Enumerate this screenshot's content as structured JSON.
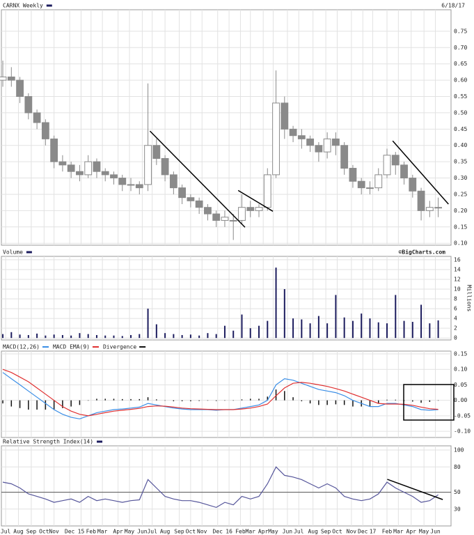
{
  "chart_data": [
    {
      "type": "candlestick",
      "title": "CARNX Weekly",
      "date": "6/18/17",
      "color": "#8a8a8a",
      "grid": true,
      "x": [
        0,
        3,
        6,
        9,
        12,
        15,
        18,
        21,
        24,
        27,
        30,
        33,
        36,
        39,
        42,
        45,
        48,
        51,
        54,
        57,
        60,
        63,
        66,
        69,
        72,
        75,
        78,
        81,
        84,
        87,
        90,
        93,
        96,
        99,
        102,
        105,
        108,
        111,
        114,
        117,
        120,
        123,
        126,
        129,
        132,
        135,
        138,
        141,
        144,
        147,
        150,
        153
      ],
      "open": [
        0.6,
        0.61,
        0.6,
        0.55,
        0.5,
        0.47,
        0.42,
        0.35,
        0.34,
        0.32,
        0.31,
        0.35,
        0.32,
        0.31,
        0.3,
        0.28,
        0.28,
        0.28,
        0.4,
        0.36,
        0.31,
        0.27,
        0.24,
        0.23,
        0.21,
        0.19,
        0.17,
        0.17,
        0.17,
        0.21,
        0.2,
        0.21,
        0.31,
        0.53,
        0.45,
        0.43,
        0.42,
        0.4,
        0.38,
        0.42,
        0.4,
        0.33,
        0.29,
        0.27,
        0.27,
        0.31,
        0.37,
        0.34,
        0.3,
        0.26,
        0.2,
        0.21
      ],
      "high": [
        0.66,
        0.64,
        0.61,
        0.56,
        0.51,
        0.48,
        0.43,
        0.37,
        0.35,
        0.34,
        0.37,
        0.36,
        0.33,
        0.32,
        0.31,
        0.3,
        0.29,
        0.59,
        0.42,
        0.37,
        0.32,
        0.28,
        0.25,
        0.24,
        0.22,
        0.2,
        0.2,
        0.19,
        0.25,
        0.23,
        0.22,
        0.33,
        0.63,
        0.55,
        0.46,
        0.45,
        0.43,
        0.41,
        0.44,
        0.44,
        0.41,
        0.34,
        0.3,
        0.29,
        0.33,
        0.39,
        0.38,
        0.35,
        0.31,
        0.27,
        0.23,
        0.24
      ],
      "low": [
        0.58,
        0.58,
        0.53,
        0.48,
        0.45,
        0.4,
        0.33,
        0.32,
        0.3,
        0.29,
        0.3,
        0.3,
        0.29,
        0.28,
        0.26,
        0.26,
        0.25,
        0.26,
        0.34,
        0.29,
        0.25,
        0.22,
        0.21,
        0.19,
        0.17,
        0.15,
        0.15,
        0.11,
        0.16,
        0.18,
        0.18,
        0.2,
        0.3,
        0.42,
        0.41,
        0.39,
        0.38,
        0.35,
        0.36,
        0.37,
        0.31,
        0.27,
        0.25,
        0.25,
        0.26,
        0.3,
        0.31,
        0.28,
        0.24,
        0.17,
        0.18,
        0.18
      ],
      "close": [
        0.61,
        0.6,
        0.55,
        0.5,
        0.47,
        0.42,
        0.35,
        0.34,
        0.32,
        0.31,
        0.35,
        0.32,
        0.31,
        0.3,
        0.28,
        0.28,
        0.27,
        0.4,
        0.36,
        0.31,
        0.27,
        0.24,
        0.23,
        0.21,
        0.19,
        0.17,
        0.18,
        0.17,
        0.21,
        0.2,
        0.21,
        0.31,
        0.53,
        0.45,
        0.43,
        0.42,
        0.4,
        0.38,
        0.42,
        0.4,
        0.33,
        0.29,
        0.27,
        0.27,
        0.31,
        0.37,
        0.34,
        0.3,
        0.26,
        0.2,
        0.21,
        0.21
      ],
      "ylim": [
        0.094,
        0.816
      ],
      "yticks": [
        {
          "value": 0.1,
          "label": "0.10"
        },
        0.15,
        {
          "value": 0.2,
          "label": "0.20"
        },
        0.25,
        {
          "value": 0.3,
          "label": "0.30"
        },
        0.35,
        {
          "value": 0.4,
          "label": "0.40"
        },
        0.45,
        {
          "value": 0.5,
          "label": "0.50"
        },
        0.55,
        {
          "value": 0.6,
          "label": "0.60"
        },
        0.65,
        {
          "value": 0.7,
          "label": "0.70"
        },
        0.75
      ],
      "trendlines": [
        {
          "x": [
            51.7,
            85.1
          ],
          "y": [
            0.444,
            0.149
          ]
        },
        {
          "x": [
            82.7,
            94.9
          ],
          "y": [
            0.262,
            0.198
          ]
        },
        {
          "x": [
            137,
            156.6
          ],
          "y": [
            0.414,
            0.22
          ]
        }
      ]
    },
    {
      "type": "bar",
      "title": "Volume",
      "source": "©BigCharts.com",
      "unit_label": "Millions",
      "color": "#1c1c5e",
      "grid": true,
      "x": [
        0,
        3,
        6,
        9,
        12,
        15,
        18,
        21,
        24,
        27,
        30,
        33,
        36,
        39,
        42,
        45,
        48,
        51,
        54,
        57,
        60,
        63,
        66,
        69,
        72,
        75,
        78,
        81,
        84,
        87,
        90,
        93,
        96,
        99,
        102,
        105,
        108,
        111,
        114,
        117,
        120,
        123,
        126,
        129,
        132,
        135,
        138,
        141,
        144,
        147,
        150,
        153
      ],
      "values": [
        0.8,
        1.2,
        0.7,
        0.6,
        0.9,
        0.5,
        0.7,
        0.6,
        0.5,
        1.0,
        0.8,
        0.6,
        0.5,
        0.5,
        0.4,
        0.6,
        0.8,
        6.0,
        2.8,
        1.0,
        0.8,
        0.6,
        0.7,
        0.5,
        1.0,
        0.8,
        2.5,
        1.5,
        4.8,
        2.0,
        2.5,
        3.5,
        14.4,
        10.0,
        4.0,
        3.8,
        3.0,
        4.5,
        3.0,
        8.8,
        4.2,
        3.5,
        5.0,
        4.0,
        3.2,
        3.0,
        8.8,
        3.5,
        3.3,
        6.8,
        3.0,
        3.6
      ],
      "ylim": [
        -0.4,
        16.7
      ],
      "yticks": [
        0,
        2,
        4,
        6,
        8,
        10,
        12,
        14,
        16
      ]
    },
    {
      "type": "line",
      "grid": true,
      "x": [
        0,
        3,
        6,
        9,
        12,
        15,
        18,
        21,
        24,
        27,
        30,
        33,
        36,
        39,
        42,
        45,
        48,
        51,
        54,
        57,
        60,
        63,
        66,
        69,
        72,
        75,
        78,
        81,
        84,
        87,
        90,
        93,
        96,
        99,
        102,
        105,
        108,
        111,
        114,
        117,
        120,
        123,
        126,
        129,
        132,
        135,
        138,
        141,
        144,
        147,
        150,
        153
      ],
      "series": [
        {
          "name": "MACD(12,26)",
          "color": "#3a8ee6",
          "kind": "line",
          "values": [
            0.09,
            0.07,
            0.05,
            0.03,
            0.01,
            -0.01,
            -0.03,
            -0.045,
            -0.055,
            -0.06,
            -0.05,
            -0.04,
            -0.035,
            -0.03,
            -0.028,
            -0.025,
            -0.022,
            -0.01,
            -0.015,
            -0.02,
            -0.025,
            -0.028,
            -0.03,
            -0.03,
            -0.03,
            -0.032,
            -0.03,
            -0.03,
            -0.025,
            -0.02,
            -0.015,
            0.0,
            0.05,
            0.07,
            0.065,
            0.055,
            0.045,
            0.035,
            0.03,
            0.025,
            0.015,
            0.0,
            -0.01,
            -0.02,
            -0.02,
            -0.01,
            -0.01,
            -0.015,
            -0.02,
            -0.03,
            -0.032,
            -0.03
          ]
        },
        {
          "name": "MACD EMA(9)",
          "color": "#e03030",
          "kind": "line",
          "values": [
            0.1,
            0.09,
            0.075,
            0.06,
            0.04,
            0.02,
            0.0,
            -0.02,
            -0.035,
            -0.045,
            -0.05,
            -0.045,
            -0.04,
            -0.035,
            -0.032,
            -0.029,
            -0.026,
            -0.02,
            -0.018,
            -0.019,
            -0.022,
            -0.025,
            -0.027,
            -0.028,
            -0.029,
            -0.03,
            -0.03,
            -0.03,
            -0.028,
            -0.025,
            -0.02,
            -0.012,
            0.015,
            0.04,
            0.055,
            0.058,
            0.055,
            0.05,
            0.045,
            0.038,
            0.03,
            0.02,
            0.01,
            0.0,
            -0.01,
            -0.012,
            -0.012,
            -0.013,
            -0.016,
            -0.022,
            -0.027,
            -0.029
          ]
        },
        {
          "name": "Divergence",
          "color": "#111111",
          "kind": "bar",
          "values": [
            -0.01,
            -0.02,
            -0.025,
            -0.03,
            -0.03,
            -0.03,
            -0.03,
            -0.025,
            -0.02,
            -0.015,
            0.0,
            0.005,
            0.005,
            0.005,
            0.004,
            0.004,
            0.004,
            0.01,
            0.003,
            -0.001,
            -0.003,
            -0.003,
            -0.003,
            -0.002,
            -0.001,
            -0.002,
            0.0,
            0.0,
            0.003,
            0.005,
            0.005,
            0.012,
            0.035,
            0.03,
            0.01,
            -0.003,
            -0.01,
            -0.015,
            -0.015,
            -0.013,
            -0.015,
            -0.02,
            -0.02,
            -0.02,
            -0.01,
            0.002,
            0.002,
            -0.002,
            -0.004,
            -0.008,
            -0.005,
            -0.001
          ]
        }
      ],
      "ylim": [
        -0.12,
        0.159
      ],
      "yticks": [
        {
          "value": -0.1,
          "label": "-0.10"
        },
        -0.05,
        {
          "value": 0.0,
          "label": "0.00"
        },
        0.05,
        {
          "value": 0.1,
          "label": "0.10"
        },
        0.15
      ]
    },
    {
      "type": "line",
      "title": "Relative Strength Index(14)",
      "color": "#55559a",
      "grid": true,
      "x": [
        0,
        3,
        6,
        9,
        12,
        15,
        18,
        21,
        24,
        27,
        30,
        33,
        36,
        39,
        42,
        45,
        48,
        51,
        54,
        57,
        60,
        63,
        66,
        69,
        72,
        75,
        78,
        81,
        84,
        87,
        90,
        93,
        96,
        99,
        102,
        105,
        108,
        111,
        114,
        117,
        120,
        123,
        126,
        129,
        132,
        135,
        138,
        141,
        144,
        147,
        150,
        153
      ],
      "values": [
        62,
        60,
        55,
        48,
        45,
        42,
        38,
        40,
        42,
        38,
        45,
        40,
        42,
        40,
        38,
        40,
        41,
        65,
        55,
        45,
        42,
        40,
        40,
        38,
        35,
        32,
        38,
        35,
        45,
        42,
        45,
        60,
        80,
        70,
        68,
        65,
        60,
        55,
        60,
        55,
        45,
        42,
        40,
        42,
        48,
        62,
        55,
        50,
        45,
        38,
        40,
        47
      ],
      "ylim": [
        10,
        105
      ],
      "yticks": [
        30,
        50,
        80,
        100
      ],
      "reference_line": 50,
      "trendlines": [
        {
          "x": [
            135.1,
            154.6
          ],
          "y": [
            65.3,
            41.3
          ]
        }
      ],
      "xlim": [
        -0.5,
        157.5
      ],
      "xticks": [
        {
          "value": 1,
          "label": "Jul"
        },
        {
          "value": 5.5,
          "label": "Aug"
        },
        {
          "value": 10,
          "label": "Sep"
        },
        {
          "value": 14.5,
          "label": "Oct"
        },
        {
          "value": 18,
          "label": "Nov"
        },
        {
          "value": 23.5,
          "label": "Dec"
        },
        {
          "value": 27.5,
          "label": "15"
        },
        {
          "value": 31,
          "label": "Feb"
        },
        {
          "value": 35,
          "label": "Mar"
        },
        {
          "value": 40.5,
          "label": "Apr"
        },
        {
          "value": 44.5,
          "label": "May"
        },
        {
          "value": 49,
          "label": "Jun"
        },
        {
          "value": 52.5,
          "label": "Jul"
        },
        {
          "value": 57,
          "label": "Aug"
        },
        {
          "value": 62,
          "label": "Sep"
        },
        {
          "value": 66,
          "label": "Oct"
        },
        {
          "value": 70,
          "label": "Nov"
        },
        {
          "value": 75.5,
          "label": "Dec"
        },
        {
          "value": 79.5,
          "label": "16"
        },
        {
          "value": 83.5,
          "label": "Feb"
        },
        {
          "value": 87,
          "label": "Mar"
        },
        {
          "value": 91.5,
          "label": "Apr"
        },
        {
          "value": 95,
          "label": "May"
        },
        {
          "value": 100,
          "label": "Jun"
        },
        {
          "value": 104,
          "label": "Jul"
        },
        {
          "value": 109,
          "label": "Aug"
        },
        {
          "value": 113.5,
          "label": "Sep"
        },
        {
          "value": 117.5,
          "label": "Oct"
        },
        {
          "value": 122.5,
          "label": "Nov"
        },
        {
          "value": 126.5,
          "label": "Dec"
        },
        {
          "value": 130,
          "label": "17"
        },
        {
          "value": 135,
          "label": "Feb"
        },
        {
          "value": 139,
          "label": "Mar"
        },
        {
          "value": 143.5,
          "label": "Apr"
        },
        {
          "value": 148,
          "label": "May"
        },
        {
          "value": 152,
          "label": "Jun"
        }
      ]
    }
  ]
}
